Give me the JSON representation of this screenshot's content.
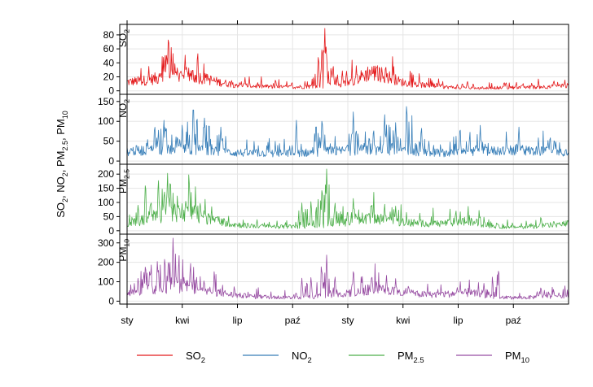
{
  "chart_data": {
    "type": "line",
    "ylabel": "SO2, NO2, PM2.5, PM10",
    "x_tick_labels": [
      "sty",
      "kwi",
      "lip",
      "paź",
      "sty",
      "kwi",
      "lip",
      "paź"
    ],
    "x_range_months": [
      0,
      24
    ],
    "grid": true,
    "legend_position": "bottom",
    "panels": [
      {
        "strip_label": "SO2",
        "ylim": [
          -5,
          95
        ],
        "yticks": [
          0,
          20,
          40,
          60,
          80
        ],
        "color": "#e41a1c",
        "baseline": [
          14,
          16,
          20,
          22,
          26,
          20,
          14,
          10,
          8,
          7,
          6,
          6,
          7,
          8,
          10,
          18,
          30,
          24,
          14,
          10,
          8,
          6,
          5,
          4,
          5,
          5,
          6,
          6,
          7,
          8
        ],
        "peaks": [
          [
            2.05,
            45
          ],
          [
            2.15,
            60
          ],
          [
            2.25,
            88
          ],
          [
            2.4,
            50
          ],
          [
            2.6,
            40
          ],
          [
            3.2,
            35
          ],
          [
            10.4,
            55
          ],
          [
            10.6,
            70
          ],
          [
            10.75,
            90
          ],
          [
            10.85,
            50
          ],
          [
            11.2,
            40
          ],
          [
            11.7,
            30
          ],
          [
            18.5,
            15
          ],
          [
            20.5,
            14
          ],
          [
            23.2,
            16
          ]
        ]
      },
      {
        "strip_label": "NO2",
        "ylim": [
          -8,
          168
        ],
        "yticks": [
          0,
          50,
          100,
          150
        ],
        "color": "#377eb8",
        "baseline": [
          28,
          30,
          32,
          34,
          33,
          30,
          26,
          24,
          22,
          22,
          21,
          22,
          24,
          26,
          28,
          32,
          34,
          30,
          28,
          26,
          24,
          23,
          24,
          26,
          28,
          30,
          30,
          28,
          27,
          26
        ],
        "peaks": [
          [
            1.5,
            100
          ],
          [
            2.0,
            110
          ],
          [
            3.0,
            100
          ],
          [
            3.6,
            160
          ],
          [
            4.2,
            120
          ],
          [
            5.1,
            90
          ],
          [
            9.2,
            110
          ],
          [
            10.6,
            120
          ],
          [
            12.3,
            130
          ],
          [
            13.4,
            90
          ],
          [
            14.0,
            125
          ],
          [
            14.6,
            100
          ],
          [
            15.2,
            158
          ],
          [
            16.0,
            95
          ],
          [
            18.1,
            95
          ],
          [
            19.2,
            90
          ],
          [
            21.3,
            90
          ],
          [
            23.0,
            70
          ]
        ]
      },
      {
        "strip_label": "PM2.5",
        "ylim": [
          -12,
          235
        ],
        "yticks": [
          0,
          50,
          100,
          150,
          200
        ],
        "color": "#4daf4a",
        "baseline": [
          30,
          40,
          55,
          65,
          75,
          55,
          40,
          25,
          20,
          18,
          16,
          16,
          18,
          22,
          28,
          40,
          55,
          45,
          35,
          30,
          28,
          30,
          38,
          32,
          18,
          15,
          15,
          18,
          24,
          28
        ],
        "peaks": [
          [
            0.6,
            100
          ],
          [
            1.0,
            190
          ],
          [
            1.3,
            120
          ],
          [
            1.7,
            200
          ],
          [
            2.0,
            130
          ],
          [
            2.2,
            210
          ],
          [
            2.35,
            205
          ],
          [
            3.2,
            120
          ],
          [
            4.0,
            80
          ],
          [
            9.5,
            100
          ],
          [
            10.0,
            110
          ],
          [
            10.6,
            170
          ],
          [
            10.85,
            220
          ],
          [
            11.3,
            110
          ],
          [
            12.3,
            120
          ],
          [
            13.3,
            110
          ],
          [
            14.0,
            100
          ],
          [
            14.6,
            90
          ],
          [
            15.2,
            40
          ],
          [
            22.5,
            55
          ]
        ]
      },
      {
        "strip_label": "PM10",
        "ylim": [
          -15,
          345
        ],
        "yticks": [
          0,
          100,
          200,
          300
        ],
        "color": "#984ea3",
        "baseline": [
          40,
          55,
          75,
          85,
          90,
          70,
          50,
          35,
          28,
          25,
          22,
          22,
          25,
          30,
          35,
          55,
          70,
          60,
          48,
          40,
          38,
          40,
          48,
          42,
          25,
          20,
          20,
          24,
          30,
          35
        ],
        "peaks": [
          [
            0.6,
            130
          ],
          [
            1.0,
            210
          ],
          [
            1.3,
            160
          ],
          [
            1.65,
            220
          ],
          [
            2.05,
            250
          ],
          [
            2.25,
            240
          ],
          [
            2.5,
            330
          ],
          [
            2.8,
            180
          ],
          [
            3.5,
            120
          ],
          [
            4.2,
            100
          ],
          [
            9.5,
            120
          ],
          [
            10.0,
            130
          ],
          [
            10.6,
            180
          ],
          [
            10.85,
            240
          ],
          [
            11.3,
            140
          ],
          [
            12.3,
            160
          ],
          [
            13.3,
            150
          ],
          [
            14.1,
            140
          ],
          [
            14.6,
            120
          ],
          [
            15.3,
            90
          ],
          [
            19.4,
            95
          ],
          [
            20.2,
            185
          ],
          [
            22.5,
            80
          ]
        ]
      }
    ],
    "legend": [
      "SO2",
      "NO2",
      "PM2.5",
      "PM10"
    ]
  }
}
